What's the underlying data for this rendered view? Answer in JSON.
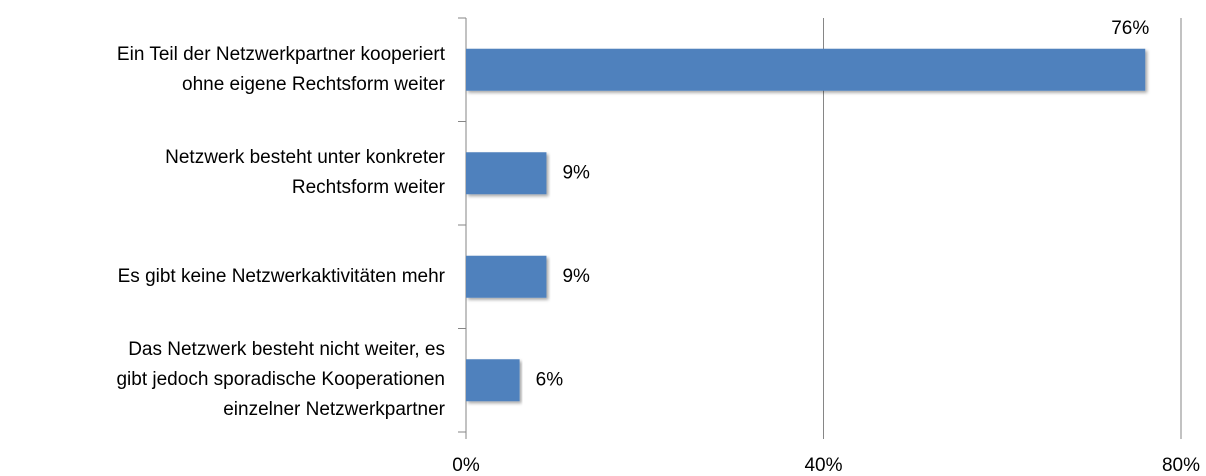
{
  "chart_data": {
    "type": "barh",
    "categories": [
      "Ein Teil der Netzwerkpartner kooperiert\nohne eigene Rechtsform weiter",
      "Netzwerk besteht unter konkreter\nRechtsform weiter",
      "Es gibt keine Netzwerkaktivitäten mehr",
      "Das Netzwerk besteht nicht weiter, es\ngibt jedoch sporadische Kooperationen\neinzelner Netzwerkpartner"
    ],
    "values": [
      76,
      9,
      9,
      6
    ],
    "value_labels": [
      "76%",
      "9%",
      "9%",
      "6%"
    ],
    "color": "#4f81bd",
    "xlim": [
      0,
      80
    ],
    "xticks": [
      {
        "value": 0,
        "label": "0%"
      },
      {
        "value": 40,
        "label": "40%"
      },
      {
        "value": 80,
        "label": "80%"
      }
    ],
    "grid": true
  }
}
